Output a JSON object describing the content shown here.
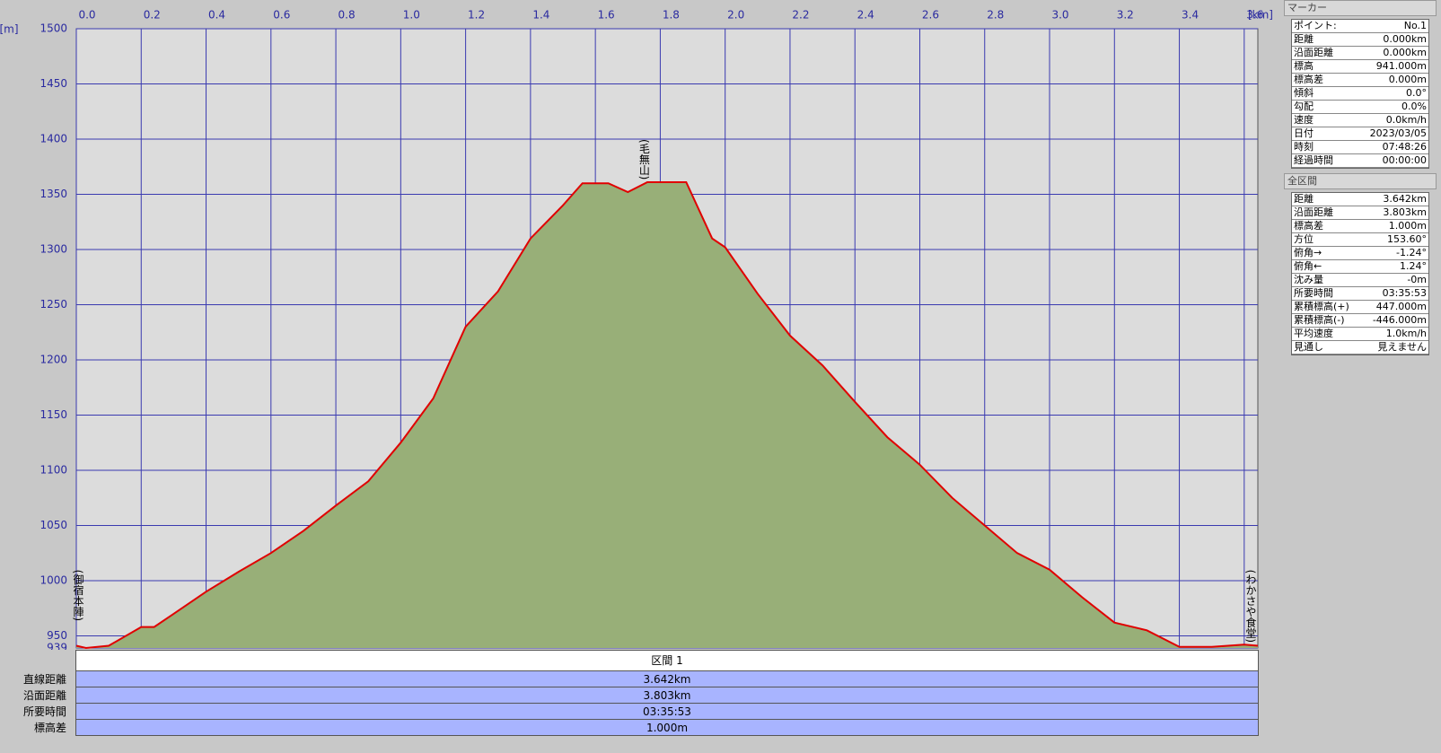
{
  "chart_data": {
    "type": "line",
    "x_unit": "[km]",
    "y_unit": "[m]",
    "x": [
      0,
      0.03,
      0.1,
      0.2,
      0.24,
      0.3,
      0.4,
      0.5,
      0.6,
      0.7,
      0.8,
      0.9,
      1.0,
      1.1,
      1.2,
      1.3,
      1.4,
      1.5,
      1.56,
      1.64,
      1.7,
      1.76,
      1.88,
      1.96,
      2.0,
      2.1,
      2.2,
      2.3,
      2.4,
      2.5,
      2.6,
      2.7,
      2.8,
      2.9,
      3.0,
      3.1,
      3.2,
      3.3,
      3.4,
      3.5,
      3.6,
      3.642
    ],
    "values": [
      941,
      939,
      941,
      958,
      958,
      970,
      990,
      1008,
      1025,
      1045,
      1068,
      1090,
      1125,
      1165,
      1230,
      1262,
      1310,
      1340,
      1360,
      1360,
      1352,
      1361,
      1361,
      1310,
      1302,
      1260,
      1222,
      1195,
      1162,
      1130,
      1105,
      1075,
      1050,
      1025,
      1010,
      985,
      962,
      955,
      940,
      940,
      942,
      941
    ],
    "color": "#e00000",
    "fill": "#98af78",
    "xlim": [
      0,
      3.642
    ],
    "xticks": [
      {
        "value": 0,
        "label": "0.0"
      },
      0.2,
      0.4,
      0.6,
      0.8,
      {
        "value": 1,
        "label": "1.0"
      },
      1.2,
      1.4,
      1.6,
      1.8,
      {
        "value": 2,
        "label": "2.0"
      },
      2.2,
      2.4,
      2.6,
      2.8,
      {
        "value": 3,
        "label": "3.0"
      },
      3.2,
      3.4,
      3.6
    ],
    "ylim": [
      939,
      1500
    ],
    "yticks": [
      939,
      950,
      1000,
      1050,
      1100,
      1150,
      1200,
      1250,
      1300,
      1350,
      1400,
      1450,
      1500
    ],
    "grid": true,
    "annotations": [
      {
        "x": 0,
        "label": "(御宿本陣)"
      },
      {
        "x": 1.75,
        "label": "(毛無山)"
      },
      {
        "x": 3.62,
        "label": "(わかさや食堂)"
      }
    ]
  },
  "segment_table": {
    "header": "区間 1",
    "rows": [
      [
        "直線距離",
        "3.642km"
      ],
      [
        "沿面距離",
        "3.803km"
      ],
      [
        "所要時間",
        "03:35:53"
      ],
      [
        "標高差",
        "1.000m"
      ]
    ]
  },
  "marker_panel": {
    "title": "マーカー",
    "rows": [
      [
        "ポイント:",
        "No.1"
      ],
      [
        "距離",
        "0.000km"
      ],
      [
        "沿面距離",
        "0.000km"
      ],
      [
        "標高",
        "941.000m"
      ],
      [
        "標高差",
        "0.000m"
      ],
      [
        "傾斜",
        "0.0°"
      ],
      [
        "勾配",
        "0.0%"
      ],
      [
        "速度",
        "0.0km/h"
      ],
      [
        "日付",
        "2023/03/05"
      ],
      [
        "時刻",
        "07:48:26"
      ],
      [
        "経過時間",
        "00:00:00"
      ]
    ]
  },
  "total_panel": {
    "title": "全区間",
    "rows": [
      [
        "距離",
        "3.642km"
      ],
      [
        "沿面距離",
        "3.803km"
      ],
      [
        "標高差",
        "1.000m"
      ],
      [
        "方位",
        "153.60°"
      ],
      [
        "俯角→",
        "-1.24°"
      ],
      [
        "俯角←",
        "1.24°"
      ],
      [
        "沈み量",
        "-0m"
      ],
      [
        "所要時間",
        "03:35:53"
      ],
      [
        "累積標高(+)",
        "447.000m"
      ],
      [
        "累積標高(-)",
        "-446.000m"
      ],
      [
        "平均速度",
        "1.0km/h"
      ],
      [
        "見通し",
        "見えません"
      ]
    ]
  }
}
